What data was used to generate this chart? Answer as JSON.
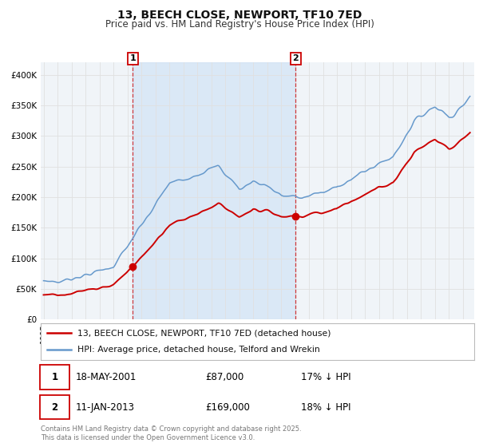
{
  "title": "13, BEECH CLOSE, NEWPORT, TF10 7ED",
  "subtitle": "Price paid vs. HM Land Registry's House Price Index (HPI)",
  "title_fontsize": 10,
  "subtitle_fontsize": 8.5,
  "bg_color": "#ffffff",
  "plot_bg_color": "#f0f4f8",
  "red_color": "#cc0000",
  "blue_color": "#6699cc",
  "shade_color": "#cce0f5",
  "grid_color": "#e0e0e0",
  "ylim": [
    0,
    420000
  ],
  "yticks": [
    0,
    50000,
    100000,
    150000,
    200000,
    250000,
    300000,
    350000,
    400000
  ],
  "ytick_labels": [
    "£0",
    "£50K",
    "£100K",
    "£150K",
    "£200K",
    "£250K",
    "£300K",
    "£350K",
    "£400K"
  ],
  "xlim_left": 1994.8,
  "xlim_right": 2025.8,
  "sale1_date": 2001.38,
  "sale1_price": 87000,
  "sale1_label": "1",
  "sale2_date": 2013.03,
  "sale2_price": 169000,
  "sale2_label": "2",
  "legend_line1": "13, BEECH CLOSE, NEWPORT, TF10 7ED (detached house)",
  "legend_line2": "HPI: Average price, detached house, Telford and Wrekin",
  "annotation1_date": "18-MAY-2001",
  "annotation1_price": "£87,000",
  "annotation1_hpi": "17% ↓ HPI",
  "annotation2_date": "11-JAN-2013",
  "annotation2_price": "£169,000",
  "annotation2_hpi": "18% ↓ HPI",
  "footer": "Contains HM Land Registry data © Crown copyright and database right 2025.\nThis data is licensed under the Open Government Licence v3.0."
}
